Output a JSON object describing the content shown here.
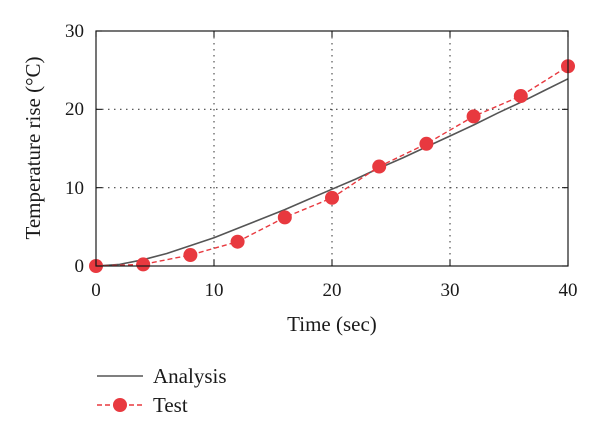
{
  "chart_data": {
    "type": "line",
    "xlabel": "Time (sec)",
    "ylabel": "Temperature rise (°C)",
    "xlim": [
      0,
      40
    ],
    "ylim": [
      0,
      30
    ],
    "xticks": [
      "0",
      "10",
      "20",
      "30",
      "40"
    ],
    "yticks": [
      "0",
      "10",
      "20",
      "30"
    ],
    "grid": "dotted at x=10,20,30 and y=10,20",
    "legend_position": "bottom-left",
    "series": [
      {
        "name": "Analysis",
        "style": "solid",
        "color": "#555555",
        "x": [
          0,
          2,
          4,
          6,
          8,
          10,
          12,
          14,
          16,
          18,
          20,
          22,
          24,
          26,
          28,
          30,
          32,
          34,
          36,
          38,
          40
        ],
        "y": [
          0.0,
          0.2,
          0.8,
          1.6,
          2.6,
          3.6,
          4.8,
          6.0,
          7.2,
          8.5,
          9.8,
          11.1,
          12.5,
          13.8,
          15.2,
          16.6,
          18.0,
          19.5,
          20.9,
          22.4,
          23.9
        ]
      },
      {
        "name": "Test",
        "style": "dashed",
        "color": "#e8393f",
        "marker": "circle",
        "x": [
          0,
          4,
          8,
          12,
          16,
          20,
          24,
          28,
          32,
          36,
          40
        ],
        "y": [
          0.0,
          0.2,
          1.4,
          3.1,
          6.2,
          8.7,
          12.7,
          15.6,
          19.1,
          21.7,
          25.5
        ]
      }
    ]
  }
}
